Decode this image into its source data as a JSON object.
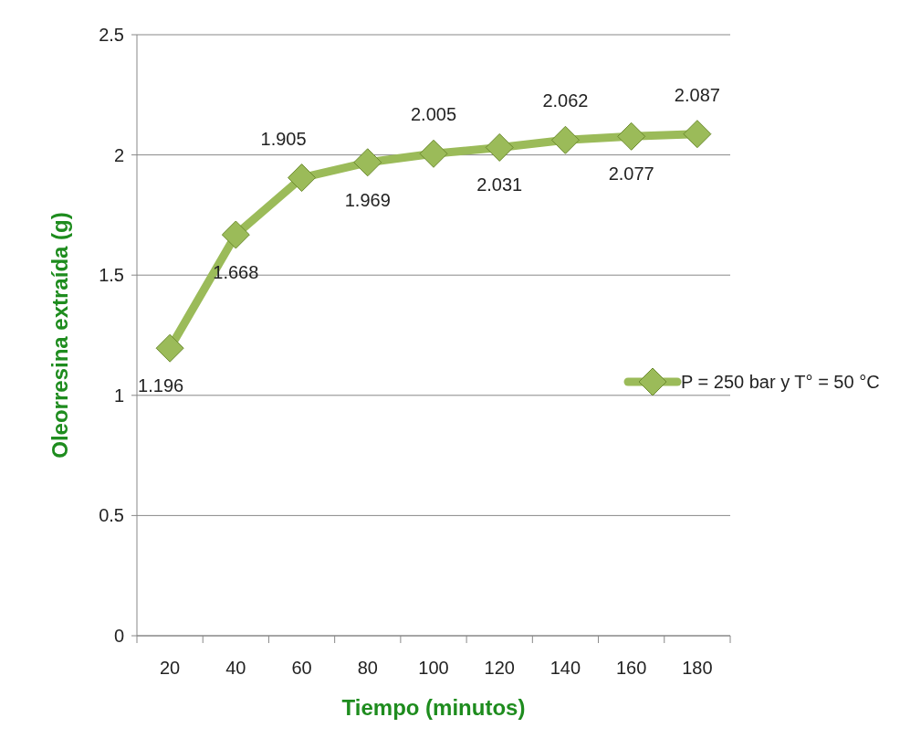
{
  "chart_data": {
    "type": "line",
    "xlabel": "Tiempo (minutos)",
    "ylabel": "Oleorresina extraída (g)",
    "categories": [
      "20",
      "40",
      "60",
      "80",
      "100",
      "120",
      "140",
      "160",
      "180"
    ],
    "series": [
      {
        "name": "P = 250 bar y T° = 50 °C",
        "color": "#9bbb59",
        "values": [
          1.196,
          1.668,
          1.905,
          1.969,
          2.005,
          2.031,
          2.062,
          2.077,
          2.087
        ]
      }
    ],
    "ylim": [
      0,
      2.5
    ],
    "yticks": [
      0,
      0.5,
      1,
      1.5,
      2,
      2.5
    ],
    "grid": "y",
    "legend": "right",
    "marker": "diamond",
    "line_style": "solid",
    "data_labels": true
  }
}
